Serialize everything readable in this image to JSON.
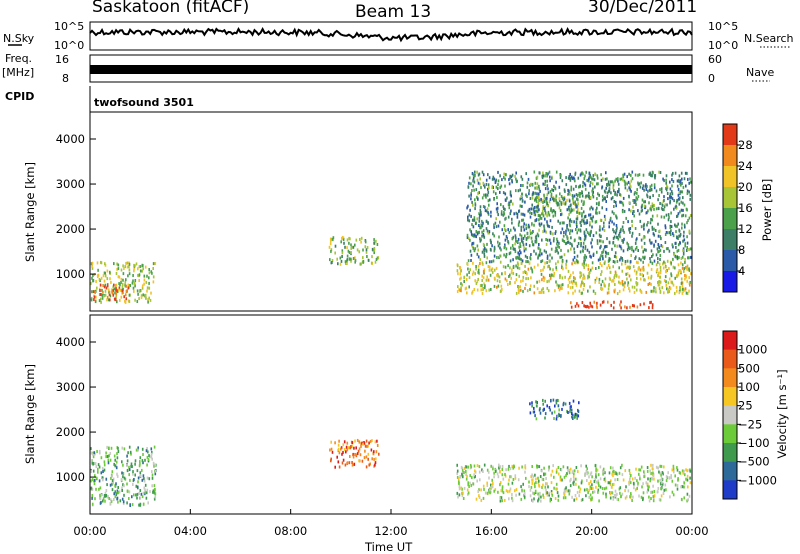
{
  "header": {
    "station": "Saskatoon (fitACF)",
    "beam": "Beam 13",
    "date": "30/Dec/2011"
  },
  "sky_panel": {
    "left_label": "N.Sky",
    "right_label": "N.Search",
    "ticks_left": [
      "10^5",
      "10^0"
    ],
    "ticks_right": [
      "10^5",
      "10^0"
    ]
  },
  "freq_panel": {
    "left_label_1": "Freq.",
    "left_label_2": "[MHz]",
    "left_ticks": [
      "16",
      "8"
    ],
    "right_label": "Nave",
    "right_ticks": [
      "60",
      "0"
    ]
  },
  "cpid": {
    "label": "CPID",
    "value": "twofsound 3501"
  },
  "chart_data": [
    {
      "type": "heatmap",
      "name": "power",
      "ylabel": "Slant Range [km]",
      "ylim": [
        180,
        4600
      ],
      "yticks": [
        "1000",
        "2000",
        "3000",
        "4000"
      ],
      "colorbar_label": "Power [dB]",
      "colorbar_ticks": [
        "4",
        "8",
        "12",
        "16",
        "20",
        "24",
        "28"
      ],
      "colorbar_colors": [
        "#1a1ae6",
        "#2a5aa8",
        "#3c7f66",
        "#4aa14a",
        "#a7c537",
        "#f0c428",
        "#f08a1e",
        "#e23a18"
      ],
      "echo_regions": [
        {
          "t0": 0.0,
          "t1": 2.6,
          "r0": 400,
          "r1": 1300,
          "level": 0.55
        },
        {
          "t0": 0.1,
          "t1": 1.5,
          "r0": 450,
          "r1": 800,
          "level": 0.9
        },
        {
          "t0": 9.5,
          "t1": 11.5,
          "r0": 1250,
          "r1": 1850,
          "level": 0.5
        },
        {
          "t0": 14.6,
          "t1": 24.0,
          "r0": 600,
          "r1": 1300,
          "level": 0.6
        },
        {
          "t0": 19.0,
          "t1": 22.6,
          "r0": 280,
          "r1": 420,
          "level": 0.95
        },
        {
          "t0": 17.5,
          "t1": 19.5,
          "r0": 2300,
          "r1": 2750,
          "level": 0.55
        },
        {
          "t0": 15.0,
          "t1": 24.0,
          "r0": 1300,
          "r1": 3300,
          "level": 0.35
        }
      ]
    },
    {
      "type": "heatmap",
      "name": "velocity",
      "ylabel": "Slant Range [km]",
      "ylim": [
        180,
        4600
      ],
      "yticks": [
        "1000",
        "2000",
        "3000",
        "4000"
      ],
      "colorbar_label": "Velocity [m s⁻¹]",
      "colorbar_ticks": [
        "1000",
        "500",
        "100",
        "25",
        "−25",
        "−100",
        "−500",
        "−1000"
      ],
      "colorbar_colors": [
        "#1e3cc8",
        "#2d6a9a",
        "#3f9a4e",
        "#6ccb38",
        "#c9c9c5",
        "#f6c623",
        "#f28a1e",
        "#ea5a1a",
        "#dd1a1a"
      ],
      "echo_regions": [
        {
          "t0": 0.0,
          "t1": 2.6,
          "r0": 400,
          "r1": 1700,
          "level": 0.35
        },
        {
          "t0": 9.5,
          "t1": 11.5,
          "r0": 1250,
          "r1": 1850,
          "level": 0.8
        },
        {
          "t0": 14.6,
          "t1": 24.0,
          "r0": 500,
          "r1": 1300,
          "level": 0.45
        },
        {
          "t0": 17.5,
          "t1": 19.5,
          "r0": 2300,
          "r1": 2750,
          "level": 0.2
        }
      ]
    }
  ],
  "x_axis": {
    "label": "Time UT",
    "ticks": [
      "00:00",
      "04:00",
      "08:00",
      "12:00",
      "16:00",
      "20:00",
      "00:00"
    ]
  }
}
